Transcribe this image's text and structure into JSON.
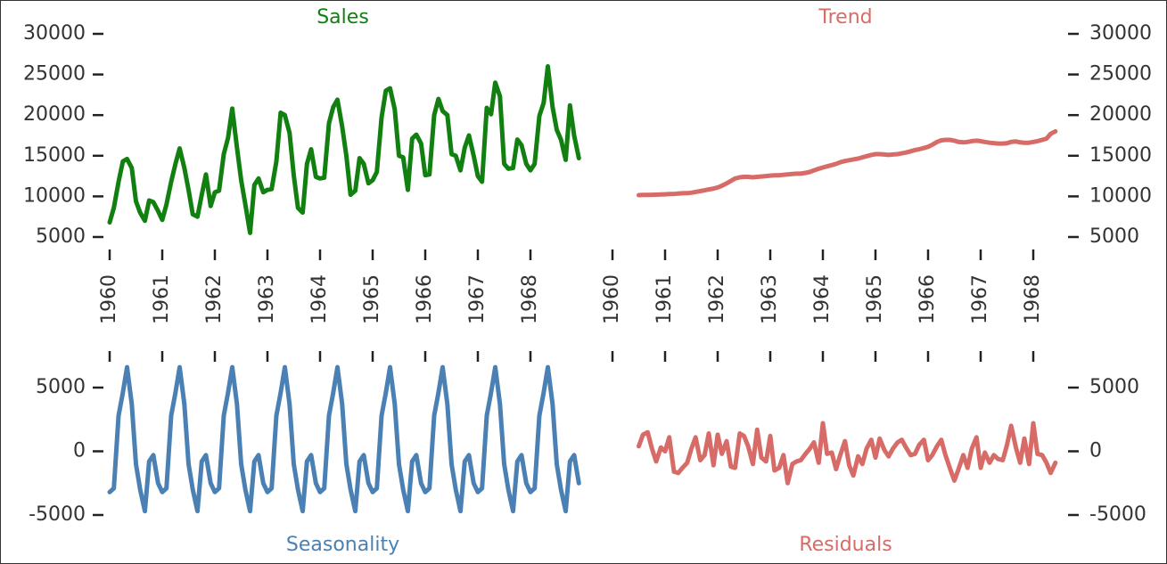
{
  "chart_data": [
    {
      "type": "line",
      "title": "Sales",
      "color": "#118011",
      "xlim": [
        1960,
        1969
      ],
      "xticks": [
        1960,
        1961,
        1962,
        1963,
        1964,
        1965,
        1966,
        1967,
        1968
      ],
      "ylim": [
        5000,
        30000
      ],
      "yticks": [
        5000,
        10000,
        15000,
        20000,
        25000,
        30000
      ],
      "x": [
        1960,
        1960.08,
        1960.17,
        1960.25,
        1960.33,
        1960.42,
        1960.5,
        1960.58,
        1960.67,
        1960.75,
        1960.83,
        1960.92,
        1961,
        1961.08,
        1961.17,
        1961.25,
        1961.33,
        1961.42,
        1961.5,
        1961.58,
        1961.67,
        1961.75,
        1961.83,
        1961.92,
        1962,
        1962.08,
        1962.17,
        1962.25,
        1962.33,
        1962.42,
        1962.5,
        1962.58,
        1962.67,
        1962.75,
        1962.83,
        1962.92,
        1963,
        1963.08,
        1963.17,
        1963.25,
        1963.33,
        1963.42,
        1963.5,
        1963.58,
        1963.67,
        1963.75,
        1963.83,
        1963.92,
        1964,
        1964.08,
        1964.17,
        1964.25,
        1964.33,
        1964.42,
        1964.5,
        1964.58,
        1964.67,
        1964.75,
        1964.83,
        1964.92,
        1965,
        1965.08,
        1965.17,
        1965.25,
        1965.33,
        1965.42,
        1965.5,
        1965.58,
        1965.67,
        1965.75,
        1965.83,
        1965.92,
        1966,
        1966.08,
        1966.17,
        1966.25,
        1966.33,
        1966.42,
        1966.5,
        1966.58,
        1966.67,
        1966.75,
        1966.83,
        1966.92,
        1967,
        1967.08,
        1967.17,
        1967.25,
        1967.33,
        1967.42,
        1967.5,
        1967.58,
        1967.67,
        1967.75,
        1967.83,
        1967.92,
        1968,
        1968.08,
        1968.17,
        1968.25,
        1968.33,
        1968.42,
        1968.5,
        1968.58,
        1968.67,
        1968.75,
        1968.83,
        1968.92
      ],
      "values": [
        6800,
        8600,
        11800,
        14300,
        14600,
        13500,
        9400,
        8000,
        7000,
        9500,
        9300,
        8200,
        7100,
        9000,
        11800,
        14000,
        15900,
        13500,
        10800,
        7800,
        7500,
        10200,
        12700,
        8800,
        10500,
        10700,
        15200,
        17200,
        20800,
        16000,
        12000,
        9000,
        5500,
        11400,
        12200,
        10500,
        10800,
        10900,
        14300,
        20300,
        20000,
        17800,
        12600,
        8600,
        8000,
        14000,
        15800,
        12400,
        12200,
        12300,
        19000,
        21000,
        21900,
        18600,
        15000,
        10200,
        10700,
        14700,
        14000,
        11600,
        12000,
        13000,
        19700,
        23000,
        23300,
        20700,
        15000,
        14800,
        10800,
        17100,
        17600,
        16500,
        12600,
        12700,
        20000,
        22000,
        20500,
        20000,
        15200,
        15000,
        13200,
        16000,
        17500,
        15000,
        12500,
        11800,
        20900,
        20100,
        24000,
        22300,
        14000,
        13400,
        13500,
        17000,
        16300,
        14000,
        13200,
        14000,
        19900,
        21500,
        26000,
        21000,
        18200,
        17000,
        14500,
        21200,
        17500,
        14700
      ]
    },
    {
      "type": "line",
      "title": "Trend",
      "color": "#d76b67",
      "xlim": [
        1960,
        1969
      ],
      "xticks": [
        1960,
        1961,
        1962,
        1963,
        1964,
        1965,
        1966,
        1967,
        1968
      ],
      "ylim": [
        5000,
        30000
      ],
      "yticks": [
        5000,
        10000,
        15000,
        20000,
        25000,
        30000
      ],
      "x": [
        1960,
        1960.08,
        1960.17,
        1960.25,
        1960.33,
        1960.42,
        1960.5,
        1960.58,
        1960.67,
        1960.75,
        1960.83,
        1960.92,
        1961,
        1961.08,
        1961.17,
        1961.25,
        1961.33,
        1961.42,
        1961.5,
        1961.58,
        1961.67,
        1961.75,
        1961.83,
        1961.92,
        1962,
        1962.08,
        1962.17,
        1962.25,
        1962.33,
        1962.42,
        1962.5,
        1962.58,
        1962.67,
        1962.75,
        1962.83,
        1962.92,
        1963,
        1963.08,
        1963.17,
        1963.25,
        1963.33,
        1963.42,
        1963.5,
        1963.58,
        1963.67,
        1963.75,
        1963.83,
        1963.92,
        1964,
        1964.08,
        1964.17,
        1964.25,
        1964.33,
        1964.42,
        1964.5,
        1964.58,
        1964.67,
        1964.75,
        1964.83,
        1964.92,
        1965,
        1965.08,
        1965.17,
        1965.25,
        1965.33,
        1965.42,
        1965.5,
        1965.58,
        1965.67,
        1965.75,
        1965.83,
        1965.92,
        1966,
        1966.08,
        1966.17,
        1966.25,
        1966.33,
        1966.42,
        1966.5,
        1966.58,
        1966.67,
        1966.75,
        1966.83,
        1966.92,
        1967,
        1967.08,
        1967.17,
        1967.25,
        1967.33,
        1967.42,
        1967.5,
        1967.58,
        1967.67,
        1967.75,
        1967.83,
        1967.92,
        1968,
        1968.08,
        1968.17,
        1968.25,
        1968.33,
        1968.42,
        1968.5,
        1968.58,
        1968.67,
        1968.75,
        1968.83,
        1968.92
      ],
      "values": [
        null,
        null,
        null,
        null,
        null,
        null,
        10150,
        10170,
        10180,
        10200,
        10210,
        10230,
        10250,
        10280,
        10300,
        10350,
        10380,
        10400,
        10450,
        10550,
        10650,
        10750,
        10850,
        10950,
        11100,
        11300,
        11600,
        11900,
        12200,
        12350,
        12400,
        12400,
        12350,
        12400,
        12450,
        12500,
        12550,
        12600,
        12600,
        12650,
        12700,
        12750,
        12800,
        12800,
        12900,
        13000,
        13200,
        13400,
        13550,
        13700,
        13850,
        14000,
        14200,
        14350,
        14450,
        14550,
        14650,
        14800,
        14950,
        15100,
        15200,
        15200,
        15150,
        15100,
        15150,
        15200,
        15300,
        15400,
        15550,
        15700,
        15800,
        15950,
        16100,
        16350,
        16700,
        16900,
        16950,
        16950,
        16850,
        16700,
        16650,
        16700,
        16800,
        16850,
        16800,
        16700,
        16600,
        16550,
        16500,
        16500,
        16550,
        16700,
        16750,
        16650,
        16600,
        16600,
        16700,
        16800,
        16950,
        17100,
        17700,
        18000,
        null,
        null,
        null,
        null,
        null,
        null
      ]
    },
    {
      "type": "line",
      "title": "Seasonality",
      "color": "#4a80b3",
      "xlim": [
        1960,
        1969
      ],
      "xticks": [
        1960,
        1961,
        1962,
        1963,
        1964,
        1965,
        1966,
        1967,
        1968
      ],
      "ylim": [
        -5000,
        5000
      ],
      "yticks": [
        -5000,
        0,
        5000
      ],
      "x": [
        1960,
        1960.08,
        1960.17,
        1960.25,
        1960.33,
        1960.42,
        1960.5,
        1960.58,
        1960.67,
        1960.75,
        1960.83,
        1960.92,
        1961,
        1961.08,
        1961.17,
        1961.25,
        1961.33,
        1961.42,
        1961.5,
        1961.58,
        1961.67,
        1961.75,
        1961.83,
        1961.92,
        1962,
        1962.08,
        1962.17,
        1962.25,
        1962.33,
        1962.42,
        1962.5,
        1962.58,
        1962.67,
        1962.75,
        1962.83,
        1962.92,
        1963,
        1963.08,
        1963.17,
        1963.25,
        1963.33,
        1963.42,
        1963.5,
        1963.58,
        1963.67,
        1963.75,
        1963.83,
        1963.92,
        1964,
        1964.08,
        1964.17,
        1964.25,
        1964.33,
        1964.42,
        1964.5,
        1964.58,
        1964.67,
        1964.75,
        1964.83,
        1964.92,
        1965,
        1965.08,
        1965.17,
        1965.25,
        1965.33,
        1965.42,
        1965.5,
        1965.58,
        1965.67,
        1965.75,
        1965.83,
        1965.92,
        1966,
        1966.08,
        1966.17,
        1966.25,
        1966.33,
        1966.42,
        1966.5,
        1966.58,
        1966.67,
        1966.75,
        1966.83,
        1966.92,
        1967,
        1967.08,
        1967.17,
        1967.25,
        1967.33,
        1967.42,
        1967.5,
        1967.58,
        1967.67,
        1967.75,
        1967.83,
        1967.92,
        1968,
        1968.08,
        1968.17,
        1968.25,
        1968.33,
        1968.42,
        1968.5,
        1968.58,
        1968.67,
        1968.75,
        1968.83,
        1968.92
      ],
      "values": [
        -3200,
        -2900,
        2800,
        4600,
        6600,
        3700,
        -1000,
        -3000,
        -4700,
        -800,
        -300,
        -2500,
        -3200,
        -2900,
        2800,
        4600,
        6600,
        3700,
        -1000,
        -3000,
        -4700,
        -800,
        -300,
        -2500,
        -3200,
        -2900,
        2800,
        4600,
        6600,
        3700,
        -1000,
        -3000,
        -4700,
        -800,
        -300,
        -2500,
        -3200,
        -2900,
        2800,
        4600,
        6600,
        3700,
        -1000,
        -3000,
        -4700,
        -800,
        -300,
        -2500,
        -3200,
        -2900,
        2800,
        4600,
        6600,
        3700,
        -1000,
        -3000,
        -4700,
        -800,
        -300,
        -2500,
        -3200,
        -2900,
        2800,
        4600,
        6600,
        3700,
        -1000,
        -3000,
        -4700,
        -800,
        -300,
        -2500,
        -3200,
        -2900,
        2800,
        4600,
        6600,
        3700,
        -1000,
        -3000,
        -4700,
        -800,
        -300,
        -2500,
        -3200,
        -2900,
        2800,
        4600,
        6600,
        3700,
        -1000,
        -3000,
        -4700,
        -800,
        -300,
        -2500,
        -3200,
        -2900,
        2800,
        4600,
        6600,
        3700,
        -1000,
        -3000,
        -4700,
        -800,
        -300,
        -2500
      ]
    },
    {
      "type": "line",
      "title": "Residuals",
      "color": "#d76b67",
      "xlim": [
        1960,
        1969
      ],
      "xticks": [
        1960,
        1961,
        1962,
        1963,
        1964,
        1965,
        1966,
        1967,
        1968
      ],
      "ylim": [
        -5000,
        5000
      ],
      "yticks": [
        -5000,
        0,
        5000
      ],
      "x": [
        1960,
        1960.08,
        1960.17,
        1960.25,
        1960.33,
        1960.42,
        1960.5,
        1960.58,
        1960.67,
        1960.75,
        1960.83,
        1960.92,
        1961,
        1961.08,
        1961.17,
        1961.25,
        1961.33,
        1961.42,
        1961.5,
        1961.58,
        1961.67,
        1961.75,
        1961.83,
        1961.92,
        1962,
        1962.08,
        1962.17,
        1962.25,
        1962.33,
        1962.42,
        1962.5,
        1962.58,
        1962.67,
        1962.75,
        1962.83,
        1962.92,
        1963,
        1963.08,
        1963.17,
        1963.25,
        1963.33,
        1963.42,
        1963.5,
        1963.58,
        1963.67,
        1963.75,
        1963.83,
        1963.92,
        1964,
        1964.08,
        1964.17,
        1964.25,
        1964.33,
        1964.42,
        1964.5,
        1964.58,
        1964.67,
        1964.75,
        1964.83,
        1964.92,
        1965,
        1965.08,
        1965.17,
        1965.25,
        1965.33,
        1965.42,
        1965.5,
        1965.58,
        1965.67,
        1965.75,
        1965.83,
        1965.92,
        1966,
        1966.08,
        1966.17,
        1966.25,
        1966.33,
        1966.42,
        1966.5,
        1966.58,
        1966.67,
        1966.75,
        1966.83,
        1966.92,
        1967,
        1967.08,
        1967.17,
        1967.25,
        1967.33,
        1967.42,
        1967.5,
        1967.58,
        1967.67,
        1967.75,
        1967.83,
        1967.92,
        1968,
        1968.08,
        1968.17,
        1968.25,
        1968.33,
        1968.42,
        1968.5,
        1968.58,
        1968.67,
        1968.75,
        1968.83,
        1968.92
      ],
      "values": [
        null,
        null,
        null,
        null,
        null,
        null,
        400,
        1300,
        1500,
        200,
        -800,
        300,
        0,
        1100,
        -1600,
        -1700,
        -1300,
        -900,
        200,
        1100,
        -700,
        -300,
        1400,
        -1100,
        1300,
        -200,
        800,
        -1200,
        -1300,
        1400,
        1200,
        400,
        -1000,
        1700,
        -500,
        -800,
        1200,
        -1500,
        -1300,
        -300,
        -2500,
        -1000,
        -800,
        -700,
        -200,
        200,
        700,
        -900,
        2200,
        -200,
        -100,
        -1400,
        -300,
        800,
        -1100,
        -1900,
        -400,
        -1000,
        200,
        900,
        -500,
        1000,
        100,
        -400,
        200,
        700,
        900,
        300,
        -300,
        -200,
        500,
        900,
        -700,
        -300,
        400,
        900,
        -300,
        -1400,
        -2300,
        -1400,
        -300,
        -1300,
        200,
        1100,
        -1300,
        -100,
        -900,
        -300,
        -600,
        -700,
        500,
        2000,
        300,
        -900,
        1000,
        -1000,
        2200,
        -200,
        -300,
        -900,
        -1700,
        -900,
        null,
        null,
        null,
        null,
        null,
        null
      ]
    }
  ]
}
